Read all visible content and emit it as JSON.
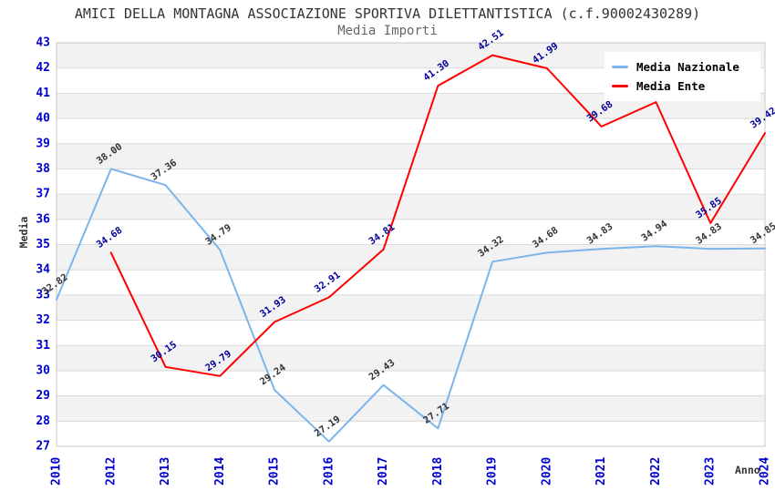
{
  "title": "AMICI DELLA MONTAGNA ASSOCIAZIONE SPORTIVA DILETTANTISTICA (c.f.90002430289)",
  "subtitle": "Media Importi",
  "axes": {
    "y_title": "Media",
    "x_title": "Anno"
  },
  "legend": [
    {
      "label": "Media Nazionale",
      "color": "#7CB5EC"
    },
    {
      "label": "Media Ente",
      "color": "#FF0000"
    }
  ],
  "colors": {
    "axis_tick": "#0000CF",
    "title": "#333333",
    "subtitle": "#666666",
    "band": "#F2F2F2",
    "grid": "#DADADA",
    "border": "#C8C8C8"
  },
  "chart_data": {
    "type": "line",
    "title": "Media Importi",
    "xlabel": "Anno",
    "ylabel": "Media",
    "ylim": [
      27,
      43
    ],
    "y_tick_step": 1,
    "grid": true,
    "legend_position": "top-right",
    "categories": [
      "2010",
      "2012",
      "2013",
      "2014",
      "2015",
      "2016",
      "2017",
      "2018",
      "2019",
      "2020",
      "2021",
      "2022",
      "2023",
      "2024"
    ],
    "series": [
      {
        "name": "Media Nazionale",
        "color": "#7CB5EC",
        "label_color": "#333333",
        "values": [
          32.82,
          38.0,
          37.36,
          34.79,
          29.24,
          27.19,
          29.43,
          27.71,
          34.32,
          34.68,
          34.83,
          34.94,
          34.83,
          34.85
        ]
      },
      {
        "name": "Media Ente",
        "color": "#FF0000",
        "label_color": "#000099",
        "values": [
          null,
          34.68,
          30.15,
          29.79,
          31.93,
          32.91,
          34.81,
          41.3,
          42.51,
          41.99,
          39.68,
          40.65,
          35.85,
          39.42
        ]
      }
    ]
  }
}
